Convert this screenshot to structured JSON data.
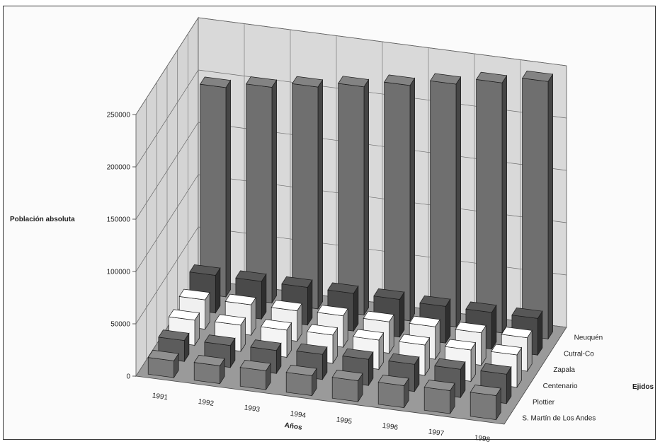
{
  "chart_data": {
    "type": "bar",
    "title": "",
    "xlabel": "Años",
    "ylabel": "Población absoluta",
    "zlabel": "Ejidos",
    "categories": [
      "1991",
      "1992",
      "1993",
      "1994",
      "1995",
      "1996",
      "1997",
      "1998"
    ],
    "ylim": [
      0,
      250000
    ],
    "y_ticks": [
      "0",
      "50000",
      "100000",
      "150000",
      "200000",
      "250000"
    ],
    "grid": true,
    "series": [
      {
        "name": "S. Martín de Los Andes",
        "color": "#7a7a7a",
        "values": [
          16000,
          17000,
          18000,
          19000,
          20000,
          21000,
          22000,
          23000
        ]
      },
      {
        "name": "Plottier",
        "color": "#5c5c5c",
        "values": [
          20000,
          21000,
          22000,
          24000,
          25000,
          26000,
          27000,
          28000
        ]
      },
      {
        "name": "Centenario",
        "color": "#f4f4f4",
        "values": [
          24000,
          25000,
          26000,
          27000,
          28000,
          29000,
          30000,
          31000
        ]
      },
      {
        "name": "Zapala",
        "color": "#f0f0f0",
        "values": [
          28000,
          29000,
          29000,
          30000,
          30000,
          31000,
          31000,
          32000
        ]
      },
      {
        "name": "Cutral-Co",
        "color": "#4a4a4a",
        "values": [
          36000,
          36000,
          36000,
          36000,
          36000,
          35000,
          35000,
          35000
        ]
      },
      {
        "name": "Neuquén",
        "color": "#6f6f6f",
        "values": [
          200000,
          206000,
          212000,
          218000,
          225000,
          232000,
          239000,
          246000
        ]
      }
    ]
  }
}
